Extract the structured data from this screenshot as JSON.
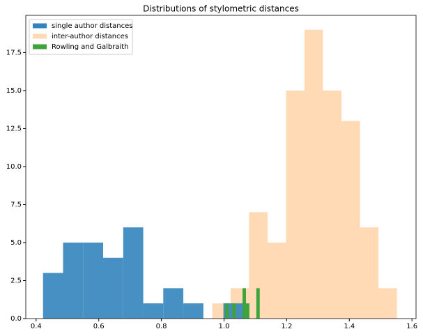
{
  "chart_data": {
    "type": "histogram",
    "title": "Distributions of stylometric distances",
    "series": [
      {
        "name": "single author distances",
        "color": "#3384bc",
        "bins": [
          0.422,
          0.486,
          0.55,
          0.614,
          0.678,
          0.742,
          0.806,
          0.87,
          0.934,
          0.998,
          1.062
        ],
        "values": [
          3,
          5,
          5,
          4,
          6,
          1,
          2,
          1,
          0,
          1
        ]
      },
      {
        "name": "inter-author distances",
        "color": "#ffdab5",
        "bins": [
          0.962,
          1.021,
          1.08,
          1.139,
          1.198,
          1.257,
          1.316,
          1.375,
          1.434,
          1.493,
          1.552
        ],
        "values": [
          1,
          2,
          7,
          5,
          15,
          19,
          15,
          13,
          6,
          2
        ]
      },
      {
        "name": "Rowling and Galbraith",
        "color": "#3da33d",
        "bins": [
          1.004,
          1.015,
          1.026,
          1.037,
          1.048,
          1.059,
          1.07,
          1.081,
          1.092,
          1.103,
          1.114
        ],
        "values": [
          1,
          0,
          1,
          0,
          0,
          2,
          1,
          0,
          0,
          2
        ]
      }
    ],
    "xlim": [
      0.367,
      1.613
    ],
    "xticks": [
      0.4,
      0.6,
      0.8,
      {
        "value": 1.0,
        "label": "1.0"
      },
      1.2,
      1.4,
      1.6
    ],
    "ylim": [
      0,
      19.95
    ],
    "yticks": [
      {
        "value": 0,
        "label": "0.0"
      },
      2.5,
      {
        "value": 5,
        "label": "5.0"
      },
      7.5,
      {
        "value": 10,
        "label": "10.0"
      },
      12.5,
      {
        "value": 15,
        "label": "15.0"
      },
      17.5
    ],
    "legend": "upper left"
  }
}
